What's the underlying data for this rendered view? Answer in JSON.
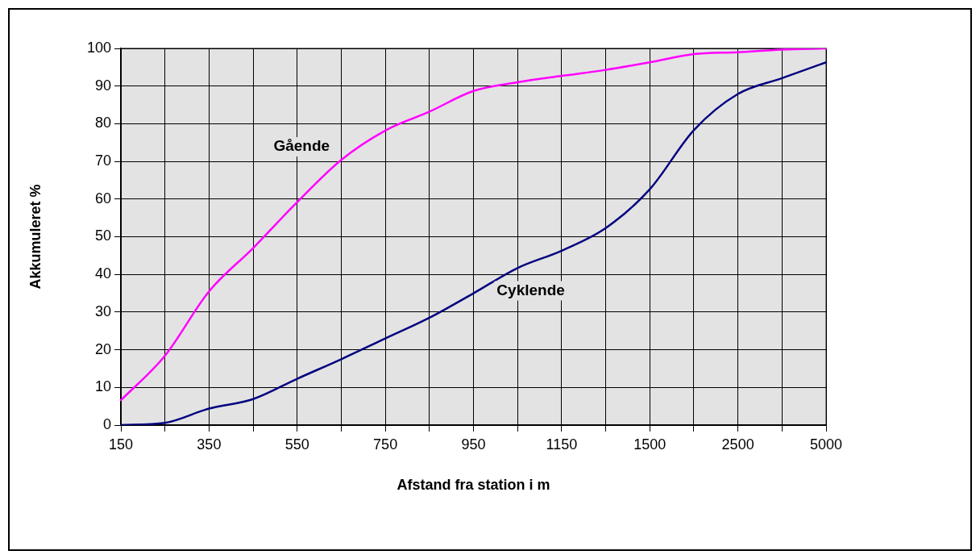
{
  "chart_data": {
    "type": "line",
    "xlabel": "Afstand fra station i m",
    "ylabel": "Akkumuleret %",
    "categories": [
      "150",
      null,
      "350",
      null,
      "550",
      null,
      "750",
      null,
      "950",
      null,
      "1150",
      null,
      "1500",
      null,
      "2500",
      null,
      "5000"
    ],
    "series": [
      {
        "name": "Gående",
        "color": "#ff00ff",
        "values": [
          6.6,
          18.4,
          35.5,
          47,
          59.2,
          70.4,
          78.2,
          83.2,
          88.7,
          91,
          92.7,
          94.3,
          96.3,
          98.5,
          99,
          99.7,
          100
        ]
      },
      {
        "name": "Cyklende",
        "color": "#000080",
        "values": [
          0,
          0.6,
          4.4,
          6.9,
          12.3,
          17.5,
          23,
          28.5,
          35,
          41.7,
          46.3,
          52.3,
          62.6,
          78.3,
          87.9,
          92.1,
          96.3
        ]
      }
    ],
    "ylim": [
      0,
      100
    ],
    "yticks": [
      0,
      10,
      20,
      30,
      40,
      50,
      60,
      70,
      80,
      90,
      100
    ],
    "grid": true
  }
}
